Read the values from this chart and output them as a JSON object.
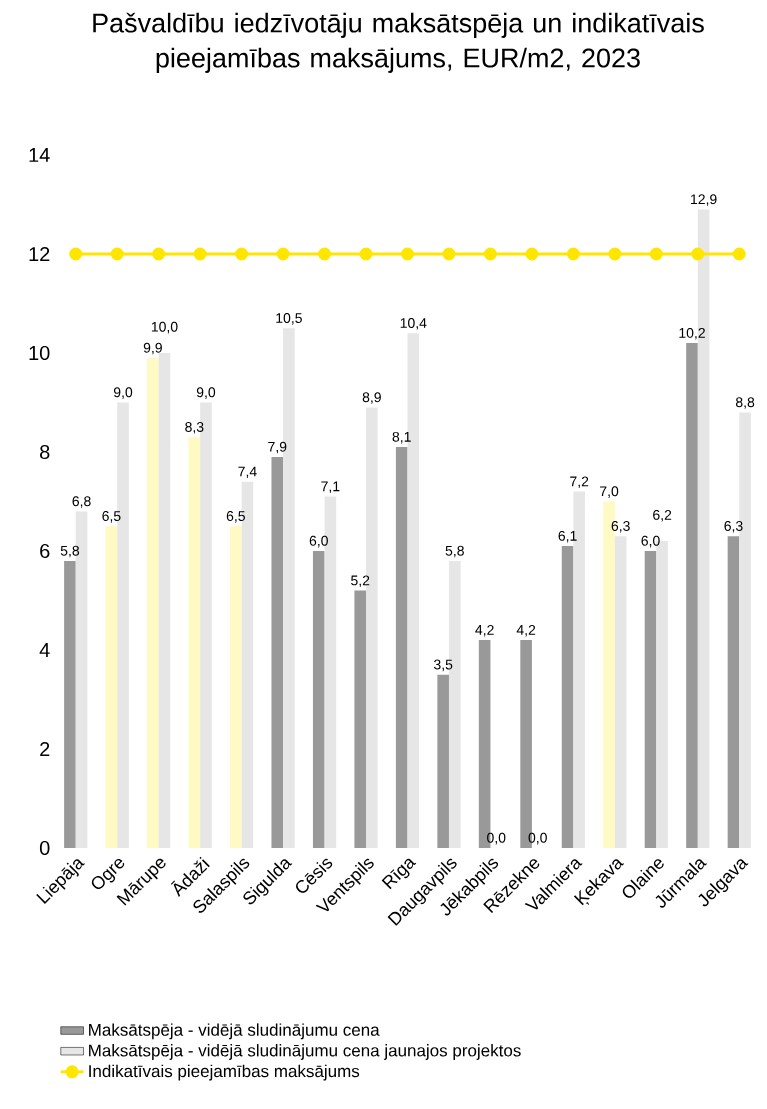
{
  "chart_data": {
    "type": "bar",
    "title": "Pašvaldību iedzīvotāju maksātspēja un indikatīvais pieejamības maksājums, EUR/m2, 2023",
    "categories": [
      "Liepāja",
      "Ogre",
      "Mārupe",
      "Ādaži",
      "Salaspils",
      "Sigulda",
      "Cēsis",
      "Ventspils",
      "Rīga",
      "Daugavpils",
      "Jēkabpils",
      "Rēzekne",
      "Valmiera",
      "Ķekava",
      "Olaine",
      "Jūrmala",
      "Jelgava"
    ],
    "series": [
      {
        "name": "Maksātspēja - vidējā sludinājumu cena",
        "color": "#999999",
        "colors": [
          "#999999",
          "#fff9c4",
          "#fff9c4",
          "#fff9c4",
          "#fff9c4",
          "#999999",
          "#999999",
          "#999999",
          "#999999",
          "#999999",
          "#999999",
          "#999999",
          "#999999",
          "#fff9c4",
          "#999999",
          "#999999",
          "#999999"
        ],
        "values": [
          5.8,
          6.5,
          9.9,
          8.3,
          6.5,
          7.9,
          6.0,
          5.2,
          8.1,
          3.5,
          4.2,
          4.2,
          6.1,
          7.0,
          6.0,
          10.2,
          6.3
        ],
        "value_labels": [
          "5,8",
          "6,5",
          "9,9",
          "8,3",
          "6,5",
          "7,9",
          "6,0",
          "5,2",
          "8,1",
          "3,5",
          "4,2",
          "4,2",
          "6,1",
          "7,0",
          "6,0",
          "10,2",
          "6,3"
        ]
      },
      {
        "name": "Maksātspēja - vidējā sludinājumu cena jaunajos projektos",
        "color": "#e6e6e6",
        "values": [
          6.8,
          9.0,
          10.0,
          9.0,
          7.4,
          10.5,
          7.1,
          8.9,
          10.4,
          5.8,
          0.0,
          0.0,
          7.2,
          6.3,
          6.2,
          12.9,
          8.8
        ],
        "value_labels": [
          "6,8",
          "9,0",
          "10,0",
          "9,0",
          "7,4",
          "10,5",
          "7,1",
          "8,9",
          "10,4",
          "5,8",
          "0,0",
          "0,0",
          "7,2",
          "6,3",
          "6,2",
          "12,9",
          "8,8"
        ]
      },
      {
        "name": "Indikatīvais pieejamības maksājums",
        "type": "line",
        "color": "#ffe600",
        "values": [
          12,
          12,
          12,
          12,
          12,
          12,
          12,
          12,
          12,
          12,
          12,
          12,
          12,
          12,
          12,
          12,
          12
        ]
      }
    ],
    "ylim": [
      0,
      14
    ],
    "yticks": [
      0,
      2,
      4,
      6,
      8,
      10,
      12,
      14
    ],
    "legend": "bottom",
    "marker": "circle"
  }
}
